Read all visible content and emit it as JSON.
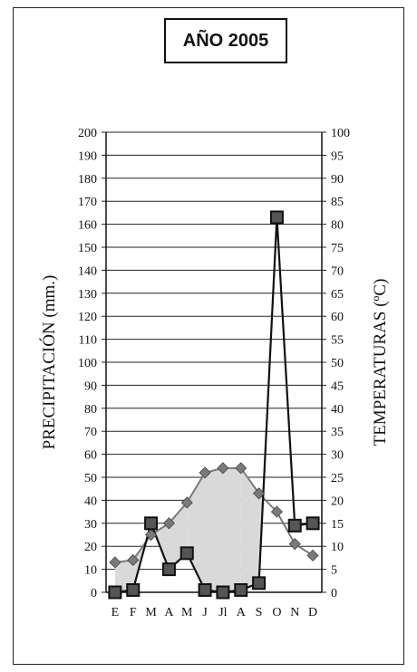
{
  "chart_data": {
    "type": "line",
    "title": "AÑO 2005",
    "categories": [
      "E",
      "F",
      "M",
      "A",
      "M",
      "J",
      "Jl",
      "A",
      "S",
      "O",
      "N",
      "D"
    ],
    "ylabel_left": "PRECIPITACIÓN (mm.)",
    "ylabel_right": "TEMPERATURAS (ºC)",
    "ylim_left": [
      0,
      200
    ],
    "ylim_right": [
      0,
      100
    ],
    "yticks_left": [
      0,
      10,
      20,
      30,
      40,
      50,
      60,
      70,
      80,
      90,
      100,
      110,
      120,
      130,
      140,
      150,
      160,
      170,
      180,
      190,
      200
    ],
    "yticks_right": [
      0,
      5,
      10,
      15,
      20,
      25,
      30,
      35,
      40,
      45,
      50,
      55,
      60,
      65,
      70,
      75,
      80,
      85,
      90,
      95,
      100
    ],
    "grid": true,
    "series": [
      {
        "marker": "square",
        "axis": "left",
        "values": [
          0,
          1,
          30,
          10,
          17,
          1,
          0,
          1,
          4,
          163,
          29,
          30
        ]
      },
      {
        "marker": "diamond",
        "axis": "right",
        "values": [
          6.5,
          7,
          12.5,
          15,
          19.5,
          26,
          27,
          27,
          21.5,
          17.5,
          10.5,
          8
        ]
      }
    ],
    "colors": {
      "precipitation": "#111111",
      "temperature": "#7a7a7a",
      "fill": "#d9d9d9"
    }
  }
}
